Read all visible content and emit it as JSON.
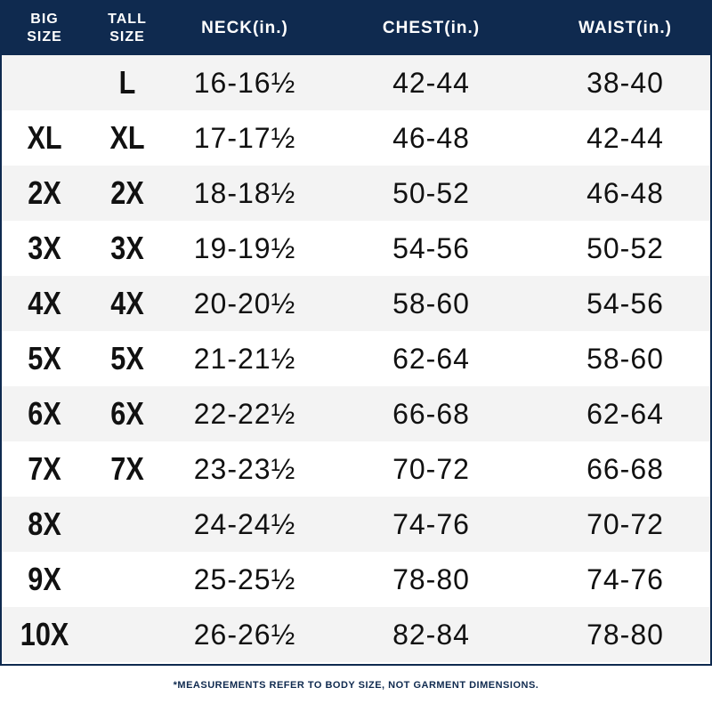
{
  "table": {
    "header": [
      "BIG SIZE",
      "TALL SIZE",
      "NECK(in.)",
      "CHEST(in.)",
      "WAIST(in.)"
    ],
    "rows": [
      [
        null,
        "L",
        "16-16½",
        "42-44",
        "38-40"
      ],
      [
        "XL",
        "XL",
        "17-17½",
        "46-48",
        "42-44"
      ],
      [
        "2X",
        "2X",
        "18-18½",
        "50-52",
        "46-48"
      ],
      [
        "3X",
        "3X",
        "19-19½",
        "54-56",
        "50-52"
      ],
      [
        "4X",
        "4X",
        "20-20½",
        "58-60",
        "54-56"
      ],
      [
        "5X",
        "5X",
        "21-21½",
        "62-64",
        "58-60"
      ],
      [
        "6X",
        "6X",
        "22-22½",
        "66-68",
        "62-64"
      ],
      [
        "7X",
        "7X",
        "23-23½",
        "70-72",
        "66-68"
      ],
      [
        "8X",
        null,
        "24-24½",
        "74-76",
        "70-72"
      ],
      [
        "9X",
        null,
        "25-25½",
        "78-80",
        "74-76"
      ],
      [
        "10X",
        null,
        "26-26½",
        "82-84",
        "78-80"
      ]
    ]
  },
  "footnote": "*MEASUREMENTS REFER TO BODY SIZE, NOT GARMENT DIMENSIONS."
}
